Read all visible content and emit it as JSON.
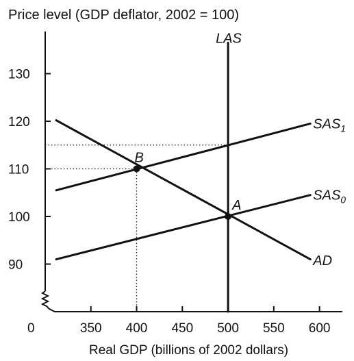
{
  "chart_data": {
    "type": "line",
    "title": "",
    "ylabel": "Price level (GDP deflator, 2002 = 100)",
    "xlabel": "Real GDP (billions of 2002 dollars)",
    "origin_label": "0",
    "xlim": [
      300,
      625
    ],
    "ylim": [
      80,
      140
    ],
    "x_ticks": [
      350,
      400,
      450,
      500,
      550,
      600
    ],
    "y_ticks": [
      90,
      100,
      110,
      120,
      130
    ],
    "grid": false,
    "axis_break": true,
    "series": [
      {
        "name": "LAS",
        "label_sub": "",
        "style": "vertical",
        "x": [
          500,
          500
        ],
        "y": [
          80,
          136.5
        ],
        "label_at": [
          503,
          137.5
        ]
      },
      {
        "name": "AD",
        "label_sub": "",
        "style": "line",
        "x": [
          312,
          590
        ],
        "y": [
          120.2,
          91
        ],
        "label_at": [
          593,
          90.8
        ]
      },
      {
        "name": "SAS",
        "label_sub": "1",
        "style": "line",
        "x": [
          312,
          590
        ],
        "y": [
          105.5,
          119.5
        ],
        "label_at": [
          593,
          119.5
        ]
      },
      {
        "name": "SAS",
        "label_sub": "0",
        "style": "line",
        "x": [
          312,
          590
        ],
        "y": [
          91,
          104.5
        ],
        "label_at": [
          593,
          104.5
        ]
      }
    ],
    "points": [
      {
        "label": "B",
        "x": 400,
        "y": 110
      },
      {
        "label": "A",
        "x": 500,
        "y": 100
      }
    ],
    "guide_lines": [
      {
        "from": [
          300,
          110
        ],
        "to": [
          400,
          110
        ]
      },
      {
        "from": [
          400,
          80
        ],
        "to": [
          400,
          110
        ]
      },
      {
        "from": [
          300,
          115
        ],
        "to": [
          500,
          115
        ]
      }
    ]
  }
}
